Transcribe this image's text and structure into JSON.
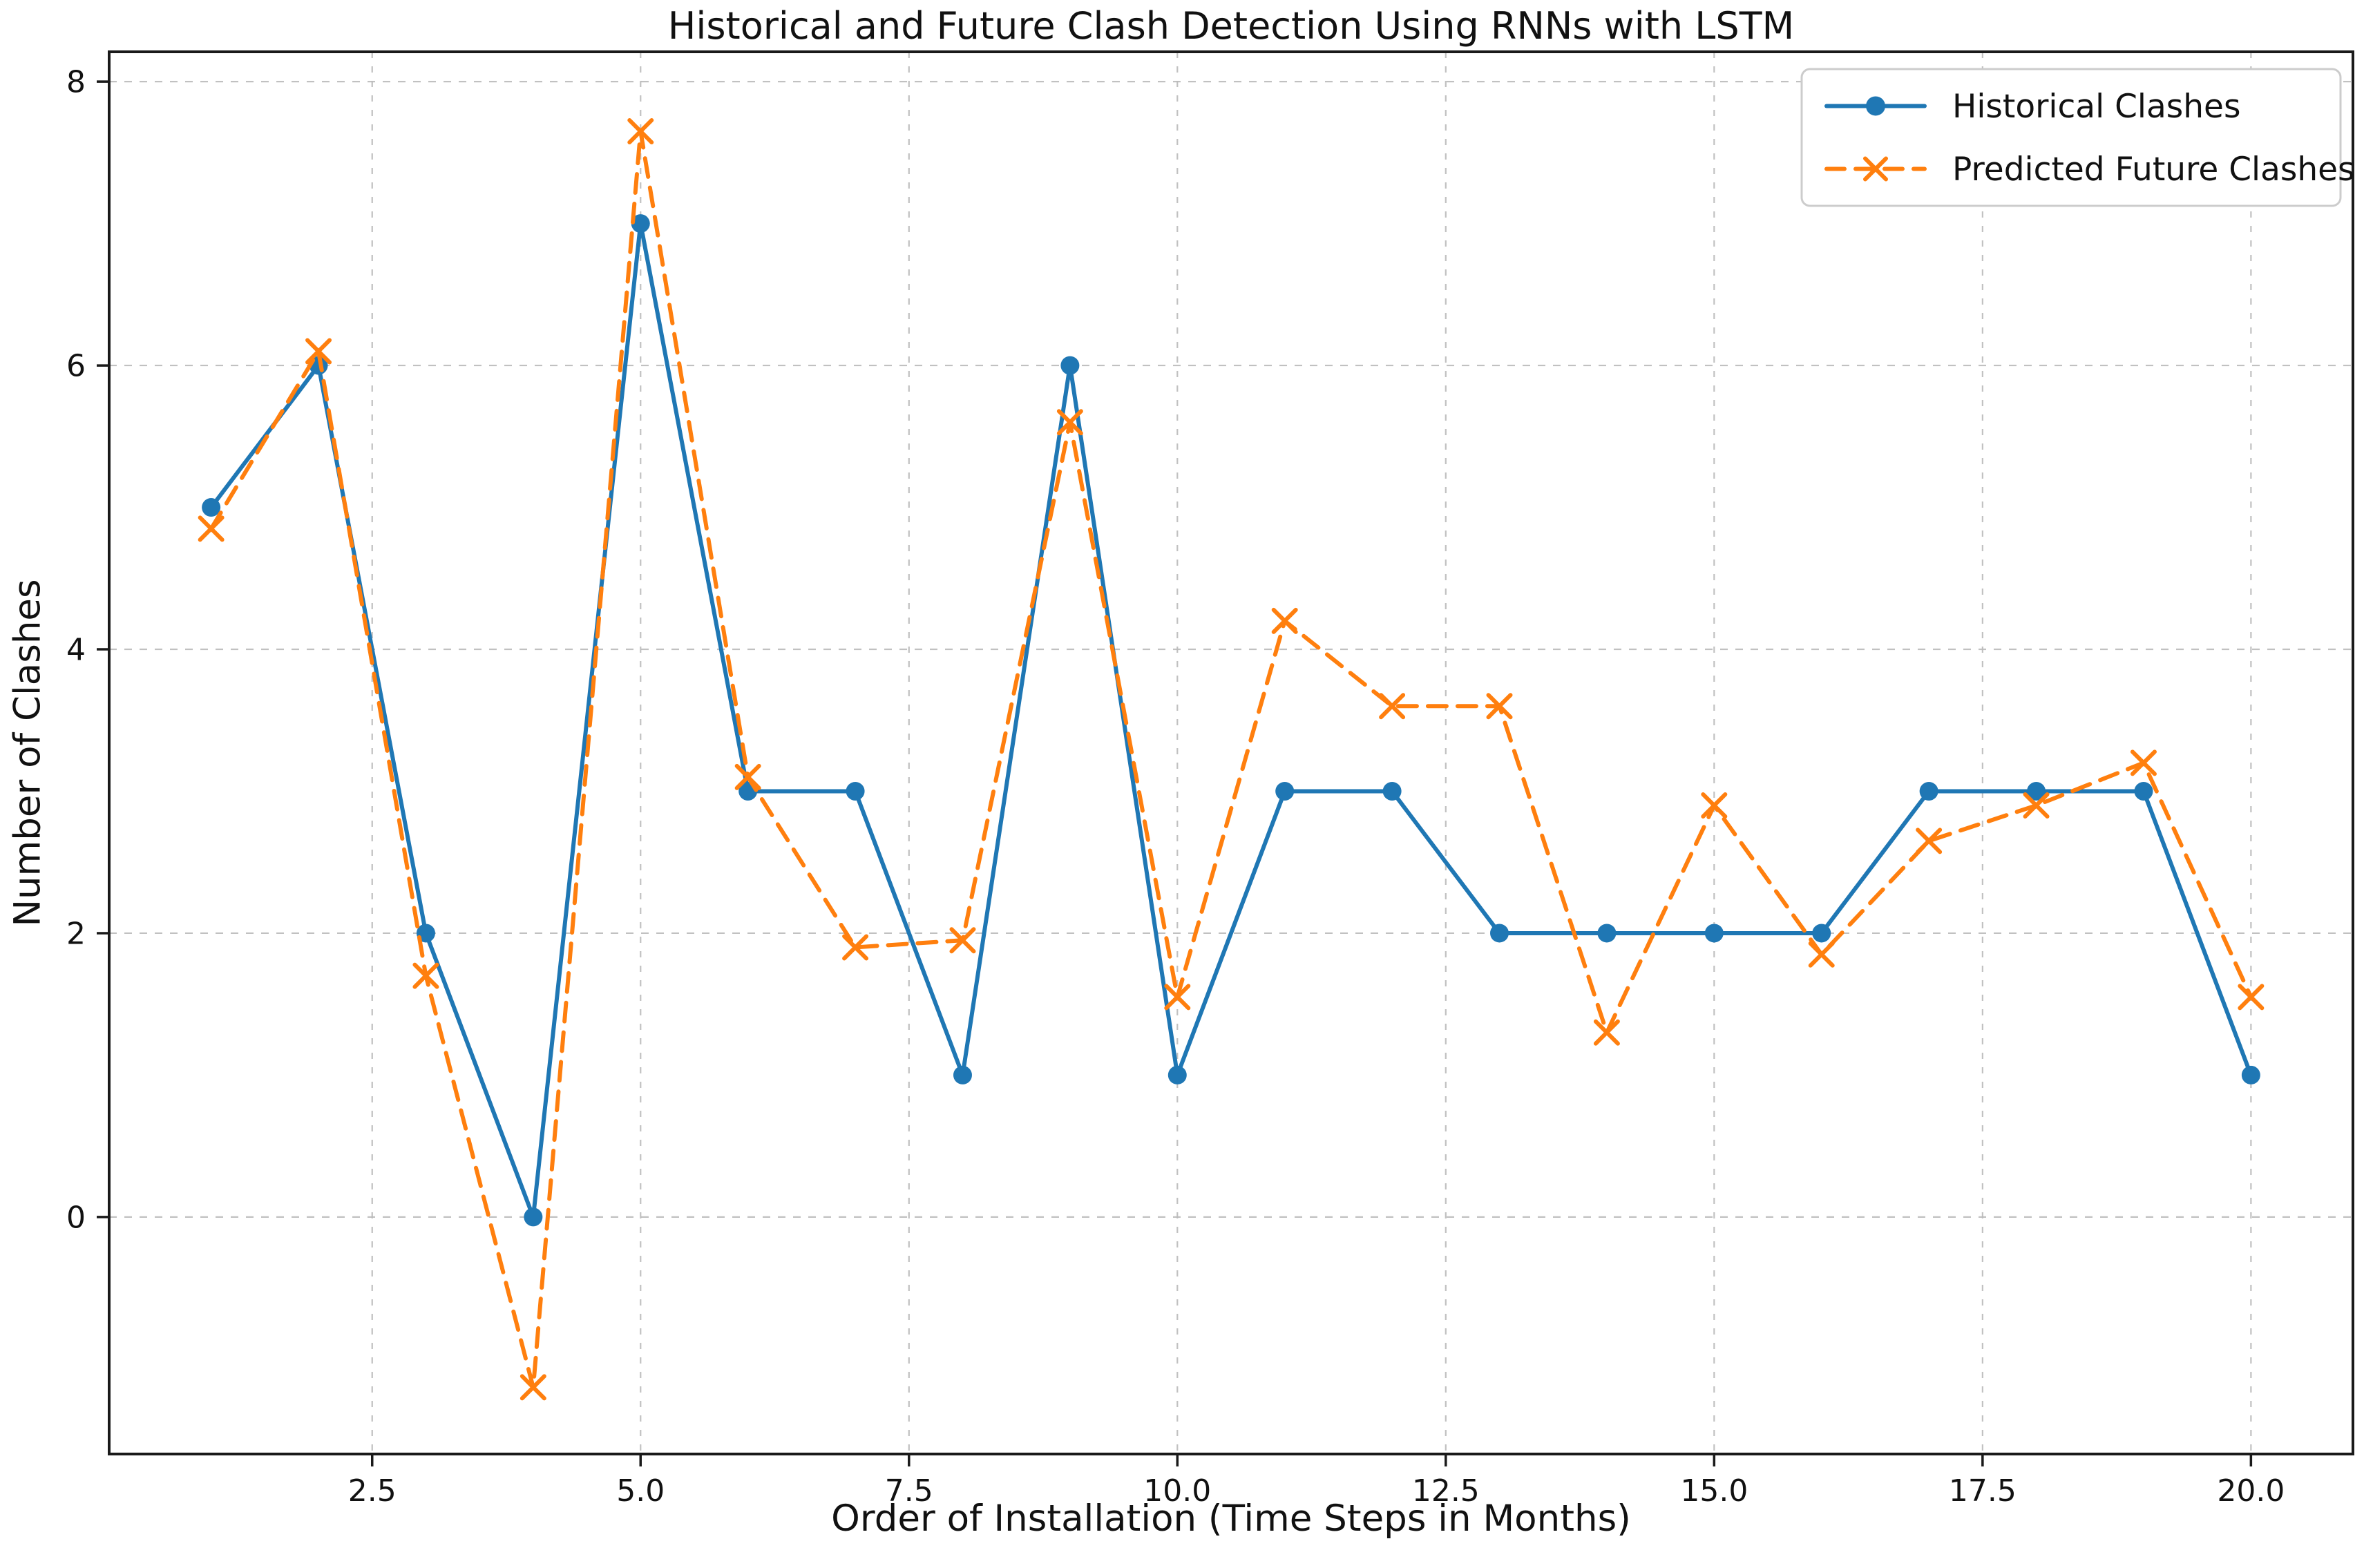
{
  "chart_data": {
    "type": "line",
    "title": "Historical and Future Clash Detection Using RNNs with LSTM",
    "xlabel": "Order of Installation (Time Steps in Months)",
    "ylabel": "Number of Clashes",
    "x": [
      1,
      2,
      3,
      4,
      5,
      6,
      7,
      8,
      9,
      10,
      11,
      12,
      13,
      14,
      15,
      16,
      17,
      18,
      19,
      20
    ],
    "series": [
      {
        "name": "Historical Clashes",
        "color": "#1f77b4",
        "line_style": "solid",
        "marker": "circle",
        "values": [
          5,
          6,
          2,
          0,
          7,
          3,
          3,
          1,
          6,
          1,
          3,
          3,
          2,
          2,
          2,
          2,
          3,
          3,
          3,
          1
        ]
      },
      {
        "name": "Predicted Future Clashes",
        "color": "#ff7f0e",
        "line_style": "dashed",
        "marker": "x",
        "values": [
          4.85,
          6.1,
          1.7,
          -1.2,
          7.65,
          3.1,
          1.9,
          1.95,
          5.6,
          1.55,
          4.2,
          3.6,
          3.6,
          1.3,
          2.9,
          1.85,
          2.65,
          2.9,
          3.2,
          1.55
        ]
      }
    ],
    "xticks": {
      "positions": [
        2.5,
        5.0,
        7.5,
        10.0,
        12.5,
        15.0,
        17.5,
        20.0
      ],
      "labels": [
        "2.5",
        "5.0",
        "7.5",
        "10.0",
        "12.5",
        "15.0",
        "17.5",
        "20.0"
      ]
    },
    "yticks": {
      "positions": [
        0,
        2,
        4,
        6,
        8
      ],
      "labels": [
        "0",
        "2",
        "4",
        "6",
        "8"
      ]
    },
    "xlim": [
      0.05,
      20.95
    ],
    "ylim": [
      -1.67,
      8.21
    ],
    "grid": true,
    "grid_color": "#bbbbbb",
    "spine_color": "#1a1a1a",
    "text_color": "#111111",
    "legend_position": "upper right"
  }
}
